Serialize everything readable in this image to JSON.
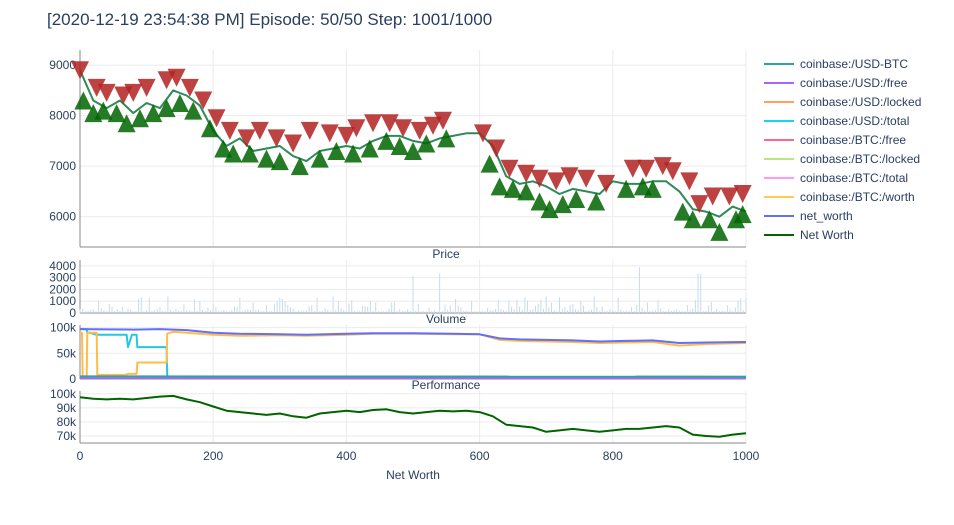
{
  "chart_data": {
    "type": "line",
    "title": "[2020-12-19 23:54:38 PM] Episode: 50/50 Step: 1001/1000",
    "xlabel": "Net Worth",
    "x_ticks": [
      "0",
      "200",
      "400",
      "600",
      "800",
      "1000"
    ],
    "xlim": [
      0,
      1000
    ],
    "panels": [
      {
        "name": "",
        "ylim": [
          5400,
          9300
        ],
        "y_ticks": [
          "6000",
          "7000",
          "8000",
          "9000"
        ],
        "series": [
          {
            "name": "coinbase:/USD-BTC",
            "color": "#2e8b57",
            "x": [
              0,
              20,
              40,
              60,
              80,
              100,
              120,
              140,
              160,
              180,
              200,
              220,
              240,
              260,
              280,
              300,
              320,
              340,
              360,
              380,
              400,
              420,
              440,
              460,
              480,
              500,
              520,
              540,
              560,
              580,
              600,
              620,
              640,
              660,
              680,
              700,
              720,
              740,
              760,
              780,
              800,
              820,
              840,
              860,
              880,
              900,
              920,
              940,
              960,
              980,
              1000
            ],
            "values": [
              8900,
              8300,
              8150,
              8300,
              8050,
              8250,
              8150,
              8500,
              8400,
              8200,
              7700,
              7400,
              7550,
              7300,
              7350,
              7400,
              7200,
              7100,
              7300,
              7350,
              7400,
              7350,
              7500,
              7600,
              7600,
              7500,
              7450,
              7550,
              7600,
              7650,
              7650,
              7400,
              6800,
              6650,
              6700,
              6600,
              6450,
              6550,
              6500,
              6450,
              6700,
              6650,
              6650,
              6700,
              6700,
              6500,
              6150,
              6100,
              6000,
              6200,
              6100
            ]
          }
        ],
        "markers": {
          "sell_color": "#b22222",
          "buy_color": "#006400",
          "sell": [
            [
              0,
              8900
            ],
            [
              25,
              8550
            ],
            [
              40,
              8450
            ],
            [
              65,
              8400
            ],
            [
              80,
              8450
            ],
            [
              100,
              8550
            ],
            [
              130,
              8700
            ],
            [
              145,
              8750
            ],
            [
              165,
              8550
            ],
            [
              185,
              8300
            ],
            [
              205,
              7950
            ],
            [
              225,
              7700
            ],
            [
              250,
              7550
            ],
            [
              270,
              7700
            ],
            [
              295,
              7550
            ],
            [
              320,
              7450
            ],
            [
              345,
              7700
            ],
            [
              375,
              7650
            ],
            [
              400,
              7600
            ],
            [
              415,
              7750
            ],
            [
              440,
              7850
            ],
            [
              465,
              7850
            ],
            [
              485,
              7750
            ],
            [
              510,
              7700
            ],
            [
              530,
              7800
            ],
            [
              545,
              7900
            ],
            [
              605,
              7650
            ],
            [
              625,
              7350
            ],
            [
              645,
              6950
            ],
            [
              670,
              6850
            ],
            [
              690,
              6750
            ],
            [
              715,
              6700
            ],
            [
              735,
              6800
            ],
            [
              760,
              6750
            ],
            [
              790,
              6650
            ],
            [
              830,
              6950
            ],
            [
              850,
              6950
            ],
            [
              875,
              7000
            ],
            [
              890,
              6900
            ],
            [
              915,
              6700
            ],
            [
              930,
              6250
            ],
            [
              950,
              6400
            ],
            [
              975,
              6400
            ],
            [
              995,
              6450
            ]
          ],
          "buy": [
            [
              5,
              8300
            ],
            [
              20,
              8050
            ],
            [
              35,
              8100
            ],
            [
              55,
              8050
            ],
            [
              70,
              7850
            ],
            [
              90,
              7950
            ],
            [
              110,
              8050
            ],
            [
              130,
              8150
            ],
            [
              150,
              8250
            ],
            [
              170,
              8100
            ],
            [
              195,
              7750
            ],
            [
              215,
              7350
            ],
            [
              230,
              7250
            ],
            [
              255,
              7250
            ],
            [
              280,
              7150
            ],
            [
              300,
              7100
            ],
            [
              330,
              7000
            ],
            [
              360,
              7150
            ],
            [
              385,
              7300
            ],
            [
              410,
              7250
            ],
            [
              435,
              7350
            ],
            [
              460,
              7500
            ],
            [
              480,
              7400
            ],
            [
              500,
              7300
            ],
            [
              520,
              7450
            ],
            [
              550,
              7550
            ],
            [
              615,
              7050
            ],
            [
              630,
              6600
            ],
            [
              650,
              6550
            ],
            [
              670,
              6500
            ],
            [
              690,
              6300
            ],
            [
              705,
              6150
            ],
            [
              725,
              6250
            ],
            [
              745,
              6350
            ],
            [
              775,
              6300
            ],
            [
              820,
              6550
            ],
            [
              845,
              6600
            ],
            [
              860,
              6550
            ],
            [
              905,
              6100
            ],
            [
              920,
              5950
            ],
            [
              945,
              5950
            ],
            [
              960,
              5700
            ],
            [
              985,
              5950
            ],
            [
              995,
              6050
            ]
          ]
        }
      },
      {
        "name": "Price",
        "ylim": [
          0,
          4500
        ],
        "y_ticks": [
          "0",
          "1000",
          "2000",
          "3000",
          "4000"
        ],
        "series_color": "#c6dbef"
      },
      {
        "name": "Volume",
        "ylim": [
          0,
          105000
        ],
        "y_ticks": [
          "0",
          "50k",
          "100k"
        ],
        "series": [
          {
            "name": "coinbase:/USD:/total",
            "color": "#25c7e0",
            "x": [
              0,
              10,
              11,
              15,
              25,
              26,
              70,
              72,
              78,
              85,
              86,
              130,
              131,
              1000
            ],
            "values": [
              97000,
              97000,
              90000,
              90000,
              86000,
              86000,
              86000,
              62000,
              86000,
              86000,
              62000,
              62000,
              5000,
              4000
            ]
          },
          {
            "name": "coinbase:/BTC:/worth",
            "color": "#ffbc4a",
            "x": [
              0,
              3,
              4,
              10,
              11,
              25,
              26,
              70,
              71,
              85,
              86,
              130,
              131,
              140,
              160,
              200,
              240,
              300,
              340,
              400,
              440,
              500,
              560,
              600,
              630,
              660,
              700,
              740,
              780,
              820,
              860,
              900,
              940,
              1000
            ],
            "values": [
              90000,
              90000,
              4000,
              4000,
              90000,
              90000,
              8000,
              8000,
              10000,
              10000,
              32000,
              32000,
              88000,
              92000,
              90000,
              86000,
              84000,
              85000,
              84000,
              86000,
              88000,
              88000,
              87000,
              87000,
              76000,
              74000,
              73000,
              72000,
              70000,
              71000,
              72000,
              65000,
              68000,
              70000
            ]
          },
          {
            "name": "net_worth",
            "color": "#636efa",
            "x": [
              0,
              40,
              80,
              120,
              160,
              200,
              240,
              300,
              340,
              400,
              440,
              500,
              560,
              600,
              630,
              660,
              700,
              740,
              780,
              820,
              860,
              900,
              940,
              1000
            ],
            "values": [
              97000,
              96500,
              96000,
              97000,
              95000,
              90000,
              88000,
              87000,
              86000,
              88000,
              89000,
              89000,
              88000,
              87000,
              79000,
              77000,
              76000,
              75000,
              73000,
              74000,
              75000,
              70000,
              71000,
              72000
            ]
          },
          {
            "name": "coinbase:/USD:/free",
            "color": "#ab63fa",
            "x": [
              0,
              1000
            ],
            "values": [
              1500,
              1200
            ]
          },
          {
            "name": "coinbase:/USD-BTC",
            "color": "#2ca59d",
            "x": [
              0,
              1000
            ],
            "values": [
              5000,
              4500
            ]
          }
        ]
      },
      {
        "name": "Performance",
        "ylim": [
          65000,
          102000
        ],
        "y_ticks": [
          "70k",
          "80k",
          "90k",
          "100k"
        ],
        "series": [
          {
            "name": "Net Worth",
            "color": "#006400",
            "x": [
              0,
              20,
              40,
              60,
              80,
              100,
              120,
              140,
              160,
              180,
              200,
              220,
              240,
              260,
              280,
              300,
              320,
              340,
              360,
              380,
              400,
              420,
              440,
              460,
              480,
              500,
              520,
              540,
              560,
              580,
              600,
              620,
              640,
              660,
              680,
              700,
              720,
              740,
              760,
              780,
              800,
              820,
              840,
              860,
              880,
              900,
              920,
              940,
              960,
              980,
              1000
            ],
            "values": [
              97500,
              96500,
              96000,
              96500,
              96000,
              97000,
              98000,
              98500,
              96000,
              94000,
              91000,
              88000,
              87000,
              86000,
              85000,
              86000,
              84000,
              83000,
              86000,
              87000,
              88000,
              87000,
              88500,
              89000,
              87000,
              86000,
              87000,
              88000,
              87500,
              88000,
              87000,
              84000,
              78000,
              77000,
              76000,
              73000,
              74000,
              75000,
              74000,
              73000,
              74000,
              75000,
              75000,
              76000,
              77000,
              76000,
              71000,
              70000,
              69500,
              71000,
              72000
            ]
          }
        ]
      }
    ],
    "legend": {
      "position": "right",
      "items": [
        {
          "name": "coinbase:/USD-BTC",
          "color": "#2ca59d"
        },
        {
          "name": "coinbase:/USD:/free",
          "color": "#ab63fa"
        },
        {
          "name": "coinbase:/USD:/locked",
          "color": "#ffa15a"
        },
        {
          "name": "coinbase:/USD:/total",
          "color": "#19d3f3"
        },
        {
          "name": "coinbase:/BTC:/free",
          "color": "#ff6692"
        },
        {
          "name": "coinbase:/BTC:/locked",
          "color": "#b6e880"
        },
        {
          "name": "coinbase:/BTC:/total",
          "color": "#ff97ff"
        },
        {
          "name": "coinbase:/BTC:/worth",
          "color": "#fecb52"
        },
        {
          "name": "net_worth",
          "color": "#636efa"
        },
        {
          "name": "Net Worth",
          "color": "#006400"
        }
      ]
    },
    "grid": true
  }
}
